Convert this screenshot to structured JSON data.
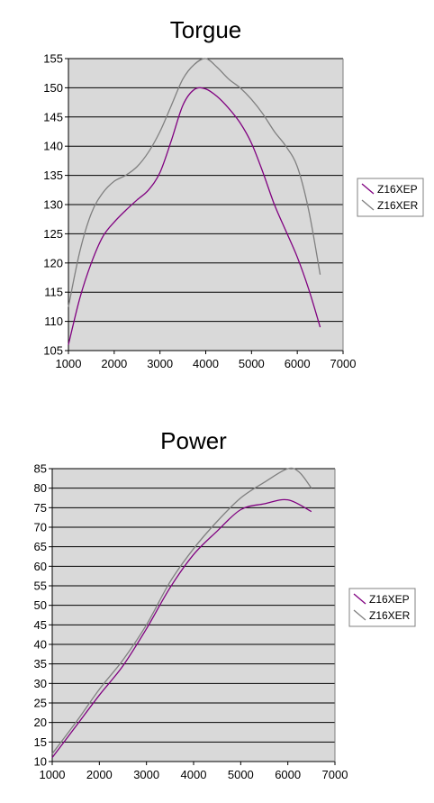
{
  "chart_data": [
    {
      "type": "line",
      "title": "Torgue",
      "xlabel": "",
      "ylabel": "",
      "xlim": [
        1000,
        7000
      ],
      "ylim": [
        105,
        155
      ],
      "xticks": [
        1000,
        2000,
        3000,
        4000,
        5000,
        6000,
        7000
      ],
      "yticks": [
        105,
        110,
        115,
        120,
        125,
        130,
        135,
        140,
        145,
        150,
        155
      ],
      "grid": true,
      "legend_position": "right",
      "colors": {
        "plot_bg": "#d9d9d9",
        "Z16XEP": "#800080",
        "Z16XER": "#808080"
      },
      "series": [
        {
          "name": "Z16XEP",
          "x": [
            1000,
            1250,
            1500,
            1750,
            2000,
            2250,
            2500,
            2750,
            3000,
            3250,
            3500,
            3750,
            4000,
            4250,
            4500,
            4750,
            5000,
            5250,
            5500,
            5750,
            6000,
            6250,
            6500
          ],
          "y": [
            106,
            114,
            120,
            124.5,
            127,
            129,
            130.8,
            132.5,
            135.5,
            141,
            147,
            149.7,
            149.8,
            148.5,
            146.5,
            144,
            140.5,
            135.5,
            130,
            125.5,
            121,
            115.5,
            109
          ]
        },
        {
          "name": "Z16XER",
          "x": [
            1000,
            1250,
            1500,
            1750,
            2000,
            2250,
            2500,
            2750,
            3000,
            3250,
            3500,
            3750,
            4000,
            4250,
            4500,
            4750,
            5000,
            5250,
            5500,
            5750,
            6000,
            6250,
            6500
          ],
          "y": [
            112.5,
            122,
            128.5,
            132,
            134,
            135,
            136.5,
            139,
            142.5,
            147,
            151.5,
            154,
            155,
            153.5,
            151.5,
            150,
            148,
            145.5,
            142.5,
            140,
            136.5,
            129,
            118
          ]
        }
      ]
    },
    {
      "type": "line",
      "title": "Power",
      "xlabel": "",
      "ylabel": "",
      "xlim": [
        1000,
        7000
      ],
      "ylim": [
        10,
        85
      ],
      "xticks": [
        1000,
        2000,
        3000,
        4000,
        5000,
        6000,
        7000
      ],
      "yticks": [
        10,
        15,
        20,
        25,
        30,
        35,
        40,
        45,
        50,
        55,
        60,
        65,
        70,
        75,
        80,
        85
      ],
      "grid": true,
      "legend_position": "right",
      "colors": {
        "plot_bg": "#d9d9d9",
        "Z16XEP": "#800080",
        "Z16XER": "#808080"
      },
      "series": [
        {
          "name": "Z16XEP",
          "x": [
            1000,
            1500,
            2000,
            2500,
            3000,
            3500,
            4000,
            4500,
            5000,
            5500,
            6000,
            6500
          ],
          "y": [
            11,
            19,
            27,
            34.5,
            44,
            54.5,
            63,
            69,
            74.5,
            76,
            77,
            74
          ]
        },
        {
          "name": "Z16XER",
          "x": [
            1000,
            1500,
            2000,
            2500,
            3000,
            3500,
            4000,
            4500,
            5000,
            5500,
            6000,
            6250,
            6500
          ],
          "y": [
            12,
            20,
            28.5,
            36,
            45,
            56,
            64.5,
            71.5,
            77.5,
            81.5,
            85,
            84,
            80
          ]
        }
      ]
    }
  ]
}
